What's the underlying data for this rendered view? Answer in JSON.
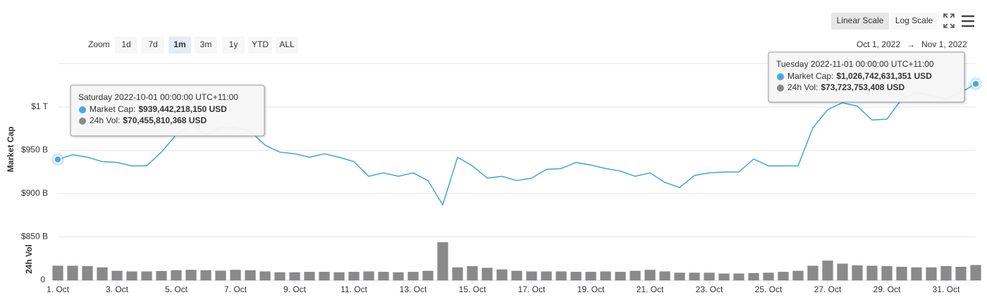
{
  "toolbar": {
    "zoom_label": "Zoom",
    "zoom": [
      "1d",
      "7d",
      "1m",
      "3m",
      "1y",
      "YTD",
      "ALL"
    ],
    "scales": [
      "Linear Scale",
      "Log Scale"
    ],
    "date_from": "Oct 1, 2022",
    "arrow": "→",
    "date_to": "Nov 1, 2022"
  },
  "chart_data": {
    "type": "line",
    "log_scale": false,
    "grid": true,
    "x": [
      1,
      1.5,
      2,
      2.5,
      3,
      3.5,
      4,
      4.5,
      5,
      5.5,
      6,
      6.5,
      7,
      7.5,
      8,
      8.5,
      9,
      9.5,
      10,
      10.5,
      11,
      11.5,
      12,
      12.5,
      13,
      13.5,
      14,
      14.5,
      15,
      15.5,
      16,
      16.5,
      17,
      17.5,
      18,
      18.5,
      19,
      19.5,
      20,
      20.5,
      21,
      21.5,
      22,
      22.5,
      23,
      23.5,
      24,
      24.5,
      25,
      25.5,
      26,
      26.5,
      27,
      27.5,
      28,
      28.5,
      29,
      29.5,
      30,
      30.5,
      31,
      31.5,
      32
    ],
    "xlim": [
      1,
      32
    ],
    "xticks": [
      {
        "value": 1,
        "label": "1. Oct"
      },
      {
        "value": 3,
        "label": "3. Oct"
      },
      {
        "value": 5,
        "label": "5. Oct"
      },
      {
        "value": 7,
        "label": "7. Oct"
      },
      {
        "value": 9,
        "label": "9. Oct"
      },
      {
        "value": 11,
        "label": "11. Oct"
      },
      {
        "value": 13,
        "label": "13. Oct"
      },
      {
        "value": 15,
        "label": "15. Oct"
      },
      {
        "value": 17,
        "label": "17. Oct"
      },
      {
        "value": 19,
        "label": "19. Oct"
      },
      {
        "value": 21,
        "label": "21. Oct"
      },
      {
        "value": 23,
        "label": "23. Oct"
      },
      {
        "value": 25,
        "label": "25. Oct"
      },
      {
        "value": 27,
        "label": "27. Oct"
      },
      {
        "value": 29,
        "label": "29. Oct"
      },
      {
        "value": 31,
        "label": "31. Oct"
      }
    ],
    "ylim": [
      800,
      1050
    ],
    "yticks": [
      {
        "value": 850,
        "label": "$850 B"
      },
      {
        "value": 900,
        "label": "$900 B"
      },
      {
        "value": 950,
        "label": "$950 B"
      },
      {
        "value": 1000,
        "label": "$1 T"
      }
    ],
    "y2lim": [
      0,
      200
    ],
    "y2ticks": [
      0
    ],
    "series": [
      {
        "name": "Market Cap",
        "color": "#4aa8e0",
        "values": [
          939.44221815,
          945,
          942,
          937,
          936,
          932,
          932,
          948,
          968,
          980,
          968,
          976,
          976,
          972,
          956,
          948,
          946,
          942,
          946,
          942,
          937,
          920,
          924,
          920,
          924,
          915,
          887,
          942,
          932,
          918,
          920,
          915,
          918,
          928,
          929,
          936,
          933,
          929,
          926,
          920,
          924,
          913,
          907,
          921,
          924,
          925,
          925,
          940,
          932,
          932,
          932,
          976,
          997,
          1005,
          1001,
          985,
          986,
          1009,
          1017,
          1013,
          1009,
          1017,
          1026.742631351
        ]
      },
      {
        "name": "24h Vol",
        "color": "#8a8a8a",
        "axis": "y2",
        "values": [
          70.455810368,
          70,
          68,
          62,
          45,
          42,
          42,
          44,
          48,
          50,
          48,
          46,
          50,
          48,
          42,
          38,
          38,
          40,
          40,
          38,
          40,
          42,
          40,
          38,
          40,
          45,
          185,
          62,
          68,
          60,
          52,
          45,
          42,
          42,
          42,
          40,
          40,
          42,
          40,
          45,
          50,
          42,
          36,
          36,
          36,
          32,
          32,
          34,
          36,
          40,
          45,
          70,
          95,
          80,
          72,
          70,
          68,
          65,
          62,
          62,
          68,
          65,
          73.723753408
        ]
      }
    ],
    "tooltips": [
      {
        "date": "Saturday 2022-10-01 00:00:00 UTC+11:00",
        "rows": [
          {
            "label": "Market Cap:",
            "value": "$939,442,218,150 USD"
          },
          {
            "label": "24h Vol:",
            "value": "$70,455,810,368 USD"
          }
        ]
      },
      {
        "date": "Tuesday 2022-11-01 00:00:00 UTC+11:00",
        "rows": [
          {
            "label": "Market Cap:",
            "value": "$1,026,742,631,351 USD"
          },
          {
            "label": "24h Vol:",
            "value": "$73,723,753,408 USD"
          }
        ]
      }
    ]
  }
}
